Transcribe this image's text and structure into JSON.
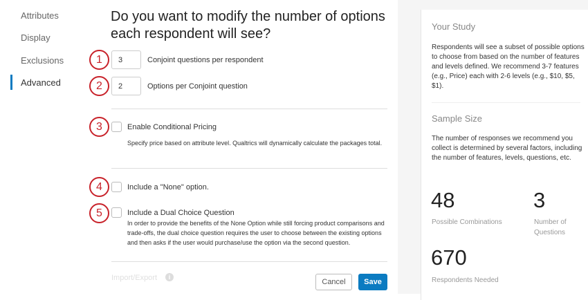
{
  "nav": {
    "items": [
      "Attributes",
      "Display",
      "Exclusions",
      "Advanced"
    ],
    "active": "Advanced",
    "accent": "#0b7bc1"
  },
  "main": {
    "title": "Do you want to modify the number of options each respondent will see?",
    "badges": [
      "1",
      "2",
      "3",
      "4",
      "5"
    ],
    "questions_per_respondent": {
      "value": "3",
      "label": "Conjoint questions per respondent"
    },
    "options_per_question": {
      "value": "2",
      "label": "Options per Conjoint question"
    },
    "conditional_pricing": {
      "label": "Enable Conditional Pricing",
      "checked": false,
      "desc": "Specify price based on attribute level. Qualtrics will dynamically calculate the packages total."
    },
    "none_option": {
      "label": "Include a \"None\" option.",
      "checked": false
    },
    "dual_choice": {
      "label": "Include a Dual Choice Question",
      "checked": false,
      "desc": "In order to provide the benefits of the None Option while still forcing product comparisons and trade-offs, the dual choice question requires the user to choose between the existing options and then asks if the user would purchase/use the option via the second question."
    },
    "import_export": "Import/Export",
    "cancel": "Cancel",
    "save": "Save"
  },
  "panel": {
    "study_title": "Your Study",
    "study_text": "Respondents will see a subset of possible options to choose from based on the number of features and levels defined. We recommend 3-7 features (e.g., Price) each with 2-6 levels (e.g., $10, $5, $1).",
    "sample_title": "Sample Size",
    "sample_text": "The number of responses we recommend you collect is determined by several factors, including the number of features, levels, questions, etc.",
    "combinations": {
      "value": "48",
      "label": "Possible Combinations"
    },
    "questions": {
      "value": "3",
      "label": "Number of Questions"
    },
    "respondents": {
      "value": "670",
      "label": "Respondents Needed"
    }
  }
}
